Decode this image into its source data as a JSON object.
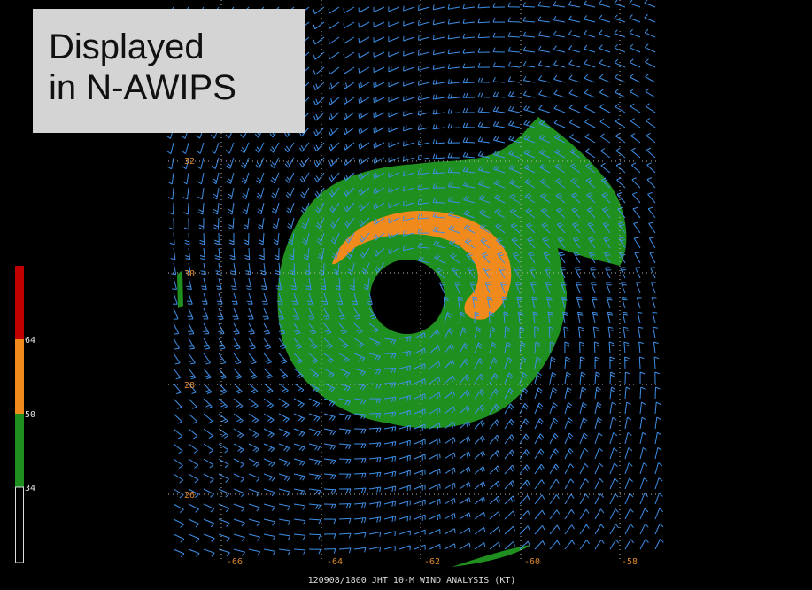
{
  "overlay": {
    "lines": [
      "Displayed",
      "in N-AWIPS"
    ]
  },
  "legend": {
    "labels": [
      "64",
      "50",
      "34"
    ]
  },
  "map": {
    "lat_labels": [
      "32",
      "30",
      "28",
      "26"
    ],
    "lon_labels": [
      "-66",
      "-64",
      "-62",
      "-60",
      "-58"
    ]
  },
  "footer": "120908/1800 JHT 10-M WIND ANALYSIS (KT)"
}
